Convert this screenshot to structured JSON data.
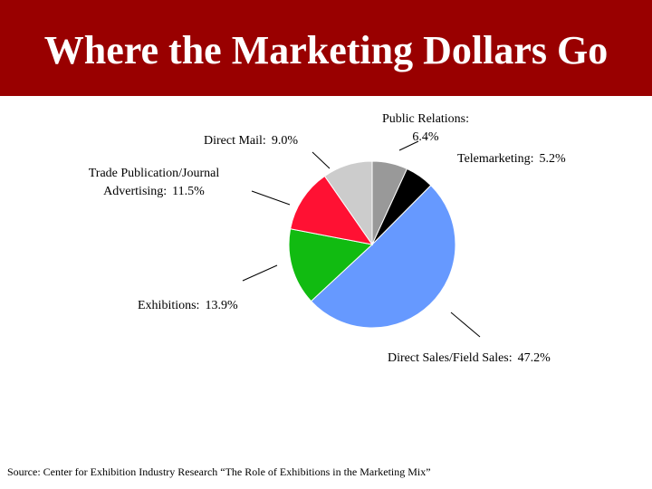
{
  "chart_data": {
    "type": "pie",
    "title": "Where the Marketing Dollars Go",
    "categories": [
      "Public Relations:",
      "Telemarketing:",
      "Direct Sales/Field Sales:",
      "Exhibitions:",
      "Trade Publication/Journal Advertising:",
      "Direct Mail:"
    ],
    "values": [
      6.4,
      5.2,
      47.2,
      13.9,
      11.5,
      9.0
    ],
    "value_labels": [
      "6.4%",
      "5.2%",
      "47.2%",
      "13.9%",
      "11.5%",
      "9.0%"
    ],
    "colors": [
      "#999999",
      "#000000",
      "#6699ff",
      "#11bb11",
      "#ff1133",
      "#cccccc"
    ],
    "source": "Source:  Center for Exhibition Industry Research “The Role of Exhibitions in the Marketing Mix”"
  }
}
